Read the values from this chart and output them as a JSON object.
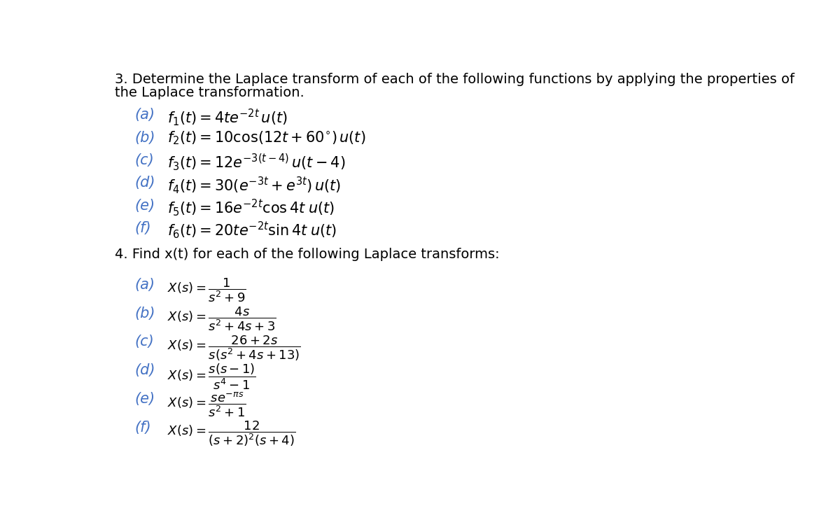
{
  "background_color": "#ffffff",
  "text_color": "#000000",
  "label_color": "#4472c4",
  "title1": "3. Determine the Laplace transform of each of the following functions by applying the properties of",
  "title1b": "the Laplace transformation.",
  "title2": "4. Find x(t) for each of the following Laplace transforms:",
  "section3_labels": [
    "(a)",
    "(b)",
    "(c)",
    "(d)",
    "(e)",
    "(f)"
  ],
  "section3_maths": [
    "$f_1(t) = 4te^{-2t}\\, u(t)$",
    "$f_2(t) = 10\\cos(12t + 60^{\\circ})\\, u(t)$",
    "$f_3(t) = 12e^{-3(t-4)}\\, u(t-4)$",
    "$f_4(t) = 30(e^{-3t} + e^{3t})\\, u(t)$",
    "$f_5(t) = 16e^{-2t}\\cos 4t\\; u(t)$",
    "$f_6(t) = 20te^{-2t}\\sin 4t\\; u(t)$"
  ],
  "section4_labels": [
    "(a)",
    "(b)",
    "(c)",
    "(d)",
    "(e)",
    "(f)"
  ],
  "section4_maths": [
    "$X(s) = \\dfrac{1}{s^2+9}$",
    "$X(s) = \\dfrac{4s}{s^2+4s+3}$",
    "$X(s) = \\dfrac{26+2s}{s(s^2+4s+13)}$",
    "$X(s) = \\dfrac{s(s-1)}{s^4-1}$",
    "$X(s) = \\dfrac{se^{-\\pi s}}{s^2+1}$",
    "$X(s) = \\dfrac{12}{(s+2)^2(s+4)}$"
  ],
  "title_fontsize": 14,
  "math3_fontsize": 15,
  "math4_fontsize": 13,
  "label_fontsize": 15
}
